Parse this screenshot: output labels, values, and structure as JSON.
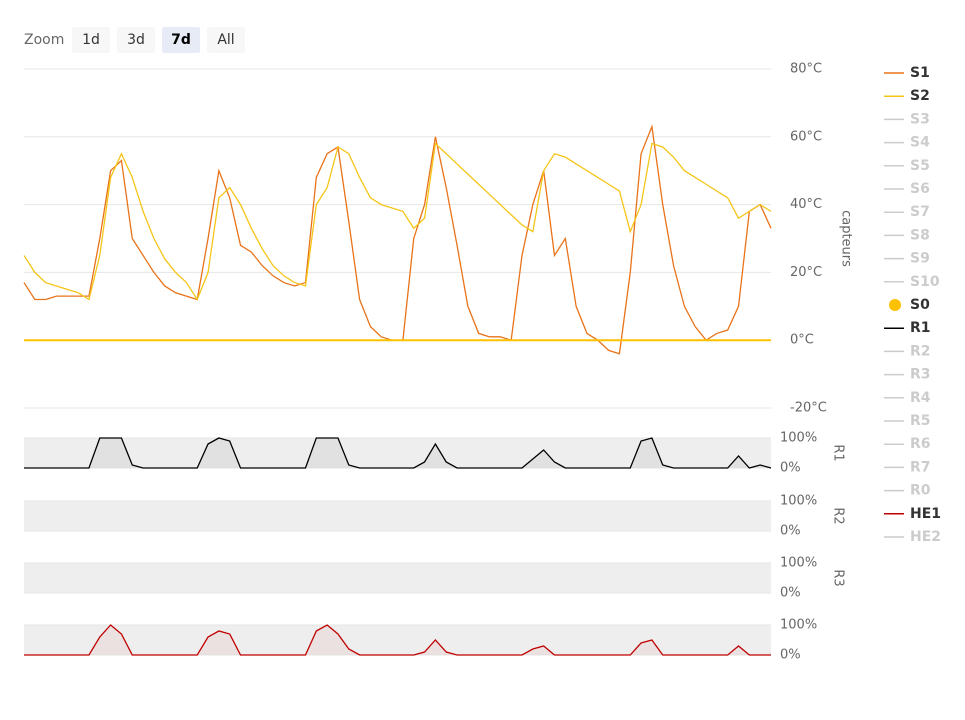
{
  "zoom": {
    "label": "Zoom",
    "buttons": [
      "1d",
      "3d",
      "7d",
      "All"
    ],
    "selected": 2
  },
  "chart_data": [
    {
      "type": "line",
      "y_label": "capteurs",
      "categories": [
        null,
        null,
        null,
        null,
        null,
        null,
        null,
        null,
        null,
        null,
        null,
        null,
        null,
        null,
        null,
        null,
        null,
        null,
        null,
        null,
        null,
        null,
        null,
        null,
        null,
        null,
        null,
        null,
        null,
        null,
        null,
        null,
        null,
        null,
        null,
        null,
        null,
        null,
        null,
        null,
        null,
        null,
        null,
        null,
        null,
        null,
        null,
        null,
        null,
        null,
        null,
        null,
        null,
        null,
        null,
        null,
        null,
        null,
        null,
        null,
        null,
        null,
        null,
        null,
        null,
        null,
        null,
        null,
        null,
        null
      ],
      "ylim": [
        -20,
        80
      ],
      "yticks": [
        {
          "value": -20,
          "label": "-20°C"
        },
        {
          "value": 0,
          "label": "0°C"
        },
        {
          "value": 20,
          "label": "20°C"
        },
        {
          "value": 40,
          "label": "40°C"
        },
        {
          "value": 60,
          "label": "60°C"
        },
        {
          "value": 80,
          "label": "80°C"
        }
      ],
      "grid": true,
      "series": [
        {
          "name": "S1",
          "color": "#e8731a",
          "visible": true,
          "values": [
            17,
            12,
            12,
            13,
            13,
            13,
            13,
            30,
            50,
            53,
            30,
            25,
            20,
            16,
            14,
            13,
            12,
            30,
            50,
            42,
            28,
            26,
            22,
            19,
            17,
            16,
            17,
            48,
            55,
            57,
            35,
            12,
            4,
            1,
            0,
            0,
            30,
            40,
            60,
            45,
            28,
            10,
            2,
            1,
            1,
            0,
            25,
            40,
            50,
            25,
            30,
            10,
            2,
            0,
            -3,
            -4,
            20,
            55,
            63,
            40,
            22,
            10,
            4,
            0,
            2,
            3,
            10,
            38,
            40,
            33
          ]
        },
        {
          "name": "S2",
          "color": "#f5c518",
          "visible": true,
          "values": [
            25,
            20,
            17,
            16,
            15,
            14,
            12,
            25,
            48,
            55,
            48,
            38,
            30,
            24,
            20,
            17,
            12,
            20,
            42,
            45,
            40,
            33,
            27,
            22,
            19,
            17,
            16,
            40,
            45,
            57,
            55,
            48,
            42,
            40,
            39,
            38,
            33,
            36,
            58,
            55,
            52,
            49,
            46,
            43,
            40,
            37,
            34,
            32,
            50,
            55,
            54,
            52,
            50,
            48,
            46,
            44,
            32,
            40,
            58,
            57,
            54,
            50,
            48,
            46,
            44,
            42,
            36,
            38,
            40,
            38
          ]
        },
        {
          "name": "S3",
          "visible": false
        },
        {
          "name": "S4",
          "visible": false
        },
        {
          "name": "S5",
          "visible": false
        },
        {
          "name": "S6",
          "visible": false
        },
        {
          "name": "S7",
          "visible": false
        },
        {
          "name": "S8",
          "visible": false
        },
        {
          "name": "S9",
          "visible": false
        },
        {
          "name": "S10",
          "visible": false
        },
        {
          "name": "S0",
          "color": "#ffc000",
          "visible": true,
          "legend_symbol": "circle",
          "values": [
            0,
            0,
            0,
            0,
            0,
            0,
            0,
            0,
            0,
            0,
            0,
            0,
            0,
            0,
            0,
            0,
            0,
            0,
            0,
            0,
            0,
            0,
            0,
            0,
            0,
            0,
            0,
            0,
            0,
            0,
            0,
            0,
            0,
            0,
            0,
            0,
            0,
            0,
            0,
            0,
            0,
            0,
            0,
            0,
            0,
            0,
            0,
            0,
            0,
            0,
            0,
            0,
            0,
            0,
            0,
            0,
            0,
            0,
            0,
            0,
            0,
            0,
            0,
            0,
            0,
            0,
            0,
            0,
            0,
            0
          ]
        },
        {
          "name": "R1",
          "color": "#000000",
          "visible": true
        },
        {
          "name": "R2",
          "visible": false
        },
        {
          "name": "R3",
          "visible": false
        },
        {
          "name": "R4",
          "visible": false
        },
        {
          "name": "R5",
          "visible": false
        },
        {
          "name": "R6",
          "visible": false
        },
        {
          "name": "R7",
          "visible": false
        },
        {
          "name": "R0",
          "visible": false
        },
        {
          "name": "HE1",
          "color": "#c00000",
          "visible": true
        },
        {
          "name": "HE2",
          "visible": false
        }
      ]
    },
    {
      "type": "area",
      "y_label": "R1",
      "ylim": [
        0,
        100
      ],
      "yticks": [
        {
          "value": 0,
          "label": "0%"
        },
        {
          "value": 100,
          "label": "100%"
        }
      ],
      "series": [
        {
          "color": "#000000",
          "values": [
            0,
            0,
            0,
            0,
            0,
            0,
            0,
            100,
            100,
            100,
            10,
            0,
            0,
            0,
            0,
            0,
            0,
            80,
            100,
            90,
            0,
            0,
            0,
            0,
            0,
            0,
            0,
            100,
            100,
            100,
            10,
            0,
            0,
            0,
            0,
            0,
            0,
            20,
            80,
            20,
            0,
            0,
            0,
            0,
            0,
            0,
            0,
            30,
            60,
            20,
            0,
            0,
            0,
            0,
            0,
            0,
            0,
            90,
            100,
            10,
            0,
            0,
            0,
            0,
            0,
            0,
            40,
            0,
            10,
            0
          ]
        }
      ]
    },
    {
      "type": "area",
      "y_label": "R2",
      "ylim": [
        0,
        100
      ],
      "yticks": [
        {
          "value": 0,
          "label": "0%"
        },
        {
          "value": 100,
          "label": "100%"
        }
      ],
      "series": []
    },
    {
      "type": "area",
      "y_label": "R3",
      "ylim": [
        0,
        100
      ],
      "yticks": [
        {
          "value": 0,
          "label": "0%"
        },
        {
          "value": 100,
          "label": "100%"
        }
      ],
      "series": []
    },
    {
      "type": "area",
      "ylim": [
        0,
        100
      ],
      "yticks": [
        {
          "value": 0,
          "label": "0%"
        },
        {
          "value": 100,
          "label": "100%"
        }
      ],
      "series": [
        {
          "color": "#c00000",
          "values": [
            0,
            0,
            0,
            0,
            0,
            0,
            0,
            60,
            100,
            70,
            0,
            0,
            0,
            0,
            0,
            0,
            0,
            60,
            80,
            70,
            0,
            0,
            0,
            0,
            0,
            0,
            0,
            80,
            100,
            70,
            20,
            0,
            0,
            0,
            0,
            0,
            0,
            10,
            50,
            10,
            0,
            0,
            0,
            0,
            0,
            0,
            0,
            20,
            30,
            0,
            0,
            0,
            0,
            0,
            0,
            0,
            0,
            40,
            50,
            0,
            0,
            0,
            0,
            0,
            0,
            0,
            30,
            0,
            0,
            0
          ]
        }
      ]
    }
  ]
}
